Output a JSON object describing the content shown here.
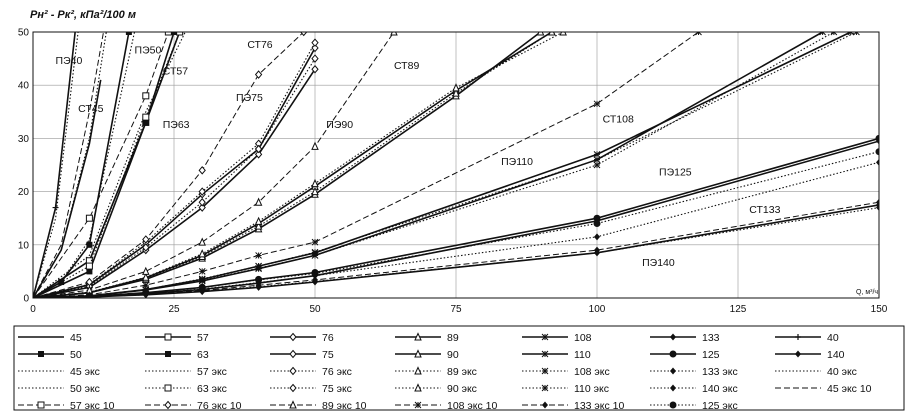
{
  "chart_data": {
    "type": "line",
    "title": "Pн² - Pк², кПа²/100 м",
    "xlabel": "Q, м³/ч",
    "ylabel": "Pн² - Pк², кПа²/100 м",
    "xlim": [
      0,
      150
    ],
    "ylim": [
      0,
      50
    ],
    "x_ticks": [
      0,
      25,
      50,
      75,
      100,
      125,
      150
    ],
    "y_ticks": [
      0,
      10,
      20,
      30,
      40,
      50
    ],
    "grid": true,
    "curve_labels": [
      {
        "text": "ПЭ40",
        "x": 4,
        "y": 44
      },
      {
        "text": "СТ45",
        "x": 8,
        "y": 35
      },
      {
        "text": "ПЭ50",
        "x": 18,
        "y": 46
      },
      {
        "text": "СТ57",
        "x": 23,
        "y": 42
      },
      {
        "text": "ПЭ63",
        "x": 23,
        "y": 32
      },
      {
        "text": "СТ76",
        "x": 38,
        "y": 47
      },
      {
        "text": "ПЭ75",
        "x": 36,
        "y": 37
      },
      {
        "text": "ПЭ90",
        "x": 52,
        "y": 32
      },
      {
        "text": "СТ89",
        "x": 64,
        "y": 43
      },
      {
        "text": "СТ108",
        "x": 101,
        "y": 33
      },
      {
        "text": "ПЭ110",
        "x": 83,
        "y": 25
      },
      {
        "text": "ПЭ125",
        "x": 111,
        "y": 23
      },
      {
        "text": "СТ133",
        "x": 127,
        "y": 16
      },
      {
        "text": "ПЭ140",
        "x": 108,
        "y": 6
      }
    ],
    "series": [
      {
        "name": "40",
        "style": "solid-plus",
        "x": [
          0,
          4,
          8
        ],
        "y": [
          0,
          17,
          55
        ]
      },
      {
        "name": "45",
        "style": "solid",
        "x": [
          0,
          5,
          10,
          12
        ],
        "y": [
          0,
          9,
          29,
          41
        ]
      },
      {
        "name": "50",
        "style": "solid-square",
        "x": [
          0,
          5,
          10,
          17
        ],
        "y": [
          0,
          3,
          10,
          50
        ]
      },
      {
        "name": "57",
        "style": "solid-sq-open",
        "x": [
          0,
          10,
          20,
          26
        ],
        "y": [
          0,
          7,
          33,
          50
        ]
      },
      {
        "name": "63",
        "style": "solid-square",
        "x": [
          0,
          10,
          20,
          25
        ],
        "y": [
          0,
          5,
          33,
          50
        ]
      },
      {
        "name": "75",
        "style": "solid-diamond-open",
        "x": [
          0,
          10,
          20,
          30,
          40,
          50
        ],
        "y": [
          0,
          2.5,
          10,
          19.5,
          28,
          47
        ]
      },
      {
        "name": "76",
        "style": "solid-diamond-open",
        "x": [
          0,
          10,
          20,
          30,
          40,
          50
        ],
        "y": [
          0,
          2,
          9,
          17,
          27,
          43
        ]
      },
      {
        "name": "89",
        "style": "solid-triangle",
        "x": [
          0,
          10,
          20,
          30,
          40,
          50,
          75,
          90
        ],
        "y": [
          0,
          1,
          3.5,
          7.5,
          13,
          19.5,
          38,
          50
        ]
      },
      {
        "name": "90",
        "style": "solid-triangle",
        "x": [
          0,
          10,
          20,
          30,
          40,
          50,
          75,
          92
        ],
        "y": [
          0,
          1,
          3.8,
          8,
          14,
          21,
          39,
          50
        ]
      },
      {
        "name": "108",
        "style": "solid-star",
        "x": [
          0,
          10,
          20,
          30,
          40,
          50,
          100,
          140
        ],
        "y": [
          0,
          0.4,
          1.5,
          3.2,
          5.5,
          8,
          26,
          50
        ]
      },
      {
        "name": "110",
        "style": "solid-star",
        "x": [
          0,
          10,
          20,
          30,
          40,
          50,
          100,
          145
        ],
        "y": [
          0,
          0.4,
          1.6,
          3.5,
          6,
          8.5,
          27,
          50
        ]
      },
      {
        "name": "125",
        "style": "solid-dot",
        "x": [
          0,
          10,
          20,
          30,
          40,
          50,
          100,
          150
        ],
        "y": [
          0,
          0.3,
          1,
          2,
          3.5,
          4.8,
          15,
          30
        ]
      },
      {
        "name": "133",
        "style": "solid-diamond",
        "x": [
          0,
          10,
          20,
          30,
          40,
          50,
          100,
          150
        ],
        "y": [
          0,
          0.2,
          0.8,
          1.6,
          2.8,
          4.2,
          14.5,
          29.5
        ]
      },
      {
        "name": "140",
        "style": "solid-diamond",
        "x": [
          0,
          10,
          20,
          30,
          40,
          50,
          100,
          150
        ],
        "y": [
          0,
          0.2,
          0.6,
          1.2,
          2,
          3,
          8.5,
          17.5
        ]
      },
      {
        "name": "40 экс",
        "style": "dotted",
        "x": [
          0,
          4,
          8
        ],
        "y": [
          0,
          15,
          50
        ]
      },
      {
        "name": "45 экс",
        "style": "dotted",
        "x": [
          0,
          5,
          10,
          13
        ],
        "y": [
          0,
          9,
          30,
          50
        ]
      },
      {
        "name": "50 экс",
        "style": "dotted",
        "x": [
          0,
          5,
          10,
          18
        ],
        "y": [
          0,
          3,
          11,
          50
        ]
      },
      {
        "name": "57 экс",
        "style": "dotted",
        "x": [
          0,
          10,
          20,
          27
        ],
        "y": [
          0,
          8,
          35,
          50
        ]
      },
      {
        "name": "63 экс",
        "style": "dotted-sq-open",
        "x": [
          0,
          10,
          20,
          26
        ],
        "y": [
          0,
          6,
          34,
          50
        ]
      },
      {
        "name": "75 экс",
        "style": "dotted-diamond-open",
        "x": [
          0,
          10,
          20,
          30,
          40,
          50
        ],
        "y": [
          0,
          2.6,
          10.5,
          20,
          29,
          48
        ]
      },
      {
        "name": "76 экс",
        "style": "dotted-diamond-open",
        "x": [
          0,
          10,
          20,
          30,
          40,
          50
        ],
        "y": [
          0,
          2.2,
          9.5,
          18,
          28,
          45
        ]
      },
      {
        "name": "89 экс",
        "style": "dotted-triangle",
        "x": [
          0,
          10,
          20,
          30,
          40,
          50,
          75,
          92
        ],
        "y": [
          0,
          1.1,
          3.6,
          7.8,
          13.5,
          20,
          38.5,
          50
        ]
      },
      {
        "name": "90 экс",
        "style": "dotted-triangle",
        "x": [
          0,
          10,
          20,
          30,
          40,
          50,
          75,
          94
        ],
        "y": [
          0,
          1.1,
          3.9,
          8.3,
          14.4,
          21.5,
          39.5,
          50
        ]
      },
      {
        "name": "108 экс",
        "style": "dotted-star",
        "x": [
          0,
          10,
          20,
          30,
          40,
          50,
          100,
          142
        ],
        "y": [
          0,
          0.4,
          1.5,
          3.3,
          5.6,
          8,
          25,
          50
        ]
      },
      {
        "name": "110 экс",
        "style": "dotted-star",
        "x": [
          0,
          10,
          20,
          30,
          40,
          50,
          100,
          146
        ],
        "y": [
          0,
          0.4,
          1.6,
          3.6,
          6,
          8.6,
          26,
          50
        ]
      },
      {
        "name": "125 экс",
        "style": "dotted-dot",
        "x": [
          0,
          10,
          20,
          30,
          40,
          50,
          100,
          150
        ],
        "y": [
          0,
          0.3,
          1,
          2,
          3.4,
          4.6,
          14,
          27.5
        ]
      },
      {
        "name": "133 экс",
        "style": "dotted-diamond",
        "x": [
          0,
          10,
          20,
          30,
          40,
          50,
          100,
          150
        ],
        "y": [
          0,
          0.25,
          0.8,
          1.7,
          2.9,
          4.2,
          11.5,
          25.5
        ]
      },
      {
        "name": "140 экс",
        "style": "dotted-diamond",
        "x": [
          0,
          10,
          20,
          30,
          40,
          50,
          100,
          150
        ],
        "y": [
          0,
          0.2,
          0.6,
          1.3,
          2.1,
          3.1,
          8.5,
          17
        ]
      },
      {
        "name": "45 экс 10",
        "style": "dashed",
        "x": [
          0,
          5,
          10,
          12.5
        ],
        "y": [
          0,
          10,
          35,
          50
        ]
      },
      {
        "name": "57 экс 10",
        "style": "dashed-sq-open",
        "x": [
          0,
          10,
          20,
          24
        ],
        "y": [
          0,
          15,
          38,
          50
        ]
      },
      {
        "name": "76 экс 10",
        "style": "dashed-diamond-open",
        "x": [
          0,
          10,
          20,
          30,
          40,
          48
        ],
        "y": [
          0,
          3,
          11,
          24,
          42,
          50
        ]
      },
      {
        "name": "89 экс 10",
        "style": "dashed-triangle",
        "x": [
          0,
          10,
          20,
          30,
          40,
          50,
          64
        ],
        "y": [
          0,
          1.5,
          5,
          10.5,
          18,
          28.5,
          50
        ]
      },
      {
        "name": "108 экс 10",
        "style": "dashed-star",
        "x": [
          0,
          10,
          20,
          30,
          40,
          50,
          100,
          118
        ],
        "y": [
          0,
          0.6,
          2.4,
          5,
          8,
          10.5,
          36.5,
          50
        ]
      },
      {
        "name": "133 экс 10",
        "style": "dashed-diamond",
        "x": [
          0,
          10,
          20,
          30,
          40,
          50,
          100,
          150
        ],
        "y": [
          0,
          0.2,
          0.7,
          1.4,
          2.4,
          3.4,
          9,
          18
        ]
      }
    ],
    "legend": {
      "placement": "bottom",
      "columns": 7,
      "rows": [
        [
          "45",
          "57",
          "76",
          "89",
          "108",
          "133",
          "40"
        ],
        [
          "50",
          "63",
          "75",
          "90",
          "110",
          "125",
          "140"
        ],
        [
          "45 экс",
          "57 экс",
          "76 экс",
          "89 экс",
          "108 экс",
          "133 экс",
          "40 экс"
        ],
        [
          "50 экс",
          "63 экс",
          "75 экс",
          "90 экс",
          "110 экс",
          "140 экс",
          "45 экс 10"
        ],
        [
          "57 экс 10",
          "76 экс 10",
          "89 экс 10",
          "108 экс 10",
          "133 экс 10",
          "125 экс",
          ""
        ]
      ]
    }
  }
}
